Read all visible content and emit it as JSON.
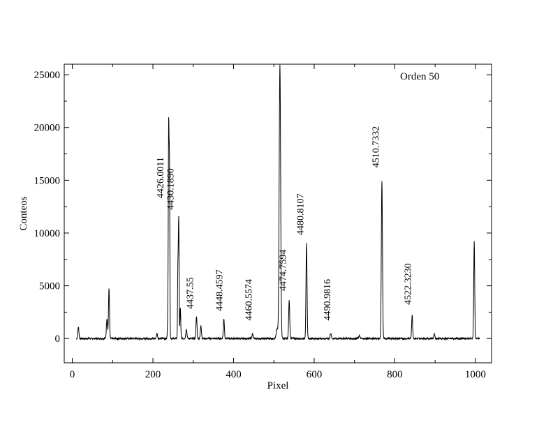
{
  "chart_data": {
    "type": "line",
    "title": "",
    "xlabel": "Pixel",
    "ylabel": "Conteos",
    "xlim": [
      -20,
      1040
    ],
    "ylim": [
      -2300,
      26000
    ],
    "xticks": [
      0,
      200,
      400,
      600,
      800,
      1000
    ],
    "yticks": [
      0,
      5000,
      10000,
      15000,
      20000,
      25000
    ],
    "grid": false,
    "annotation_text": "Orden 50",
    "baseline": 0,
    "series": [
      {
        "color": "#000000",
        "peaks": [
          {
            "x": 15,
            "y": 1100,
            "w": 1.4
          },
          {
            "x": 86,
            "y": 1900,
            "w": 1.4
          },
          {
            "x": 91,
            "y": 4800,
            "w": 1.2
          },
          {
            "x": 210,
            "y": 500,
            "w": 1.4
          },
          {
            "x": 237,
            "y": 2000,
            "w": 1.0
          },
          {
            "x": 239,
            "y": 19300,
            "w": 0.9
          },
          {
            "x": 241,
            "y": 16100,
            "w": 0.9
          },
          {
            "x": 262,
            "y": 6500,
            "w": 0.9
          },
          {
            "x": 264,
            "y": 11000,
            "w": 0.9
          },
          {
            "x": 268,
            "y": 2900,
            "w": 1.0
          },
          {
            "x": 283,
            "y": 900,
            "w": 1.4
          },
          {
            "x": 308,
            "y": 2100,
            "w": 1.3
          },
          {
            "x": 319,
            "y": 1200,
            "w": 1.4
          },
          {
            "x": 376,
            "y": 1900,
            "w": 1.3
          },
          {
            "x": 447,
            "y": 450,
            "w": 1.4
          },
          {
            "x": 508,
            "y": 900,
            "w": 2.0
          },
          {
            "x": 515,
            "y": 26000,
            "w": 1.8
          },
          {
            "x": 538,
            "y": 3600,
            "w": 1.3
          },
          {
            "x": 581,
            "y": 9000,
            "w": 1.3
          },
          {
            "x": 641,
            "y": 500,
            "w": 1.4
          },
          {
            "x": 712,
            "y": 300,
            "w": 1.4
          },
          {
            "x": 768,
            "y": 14900,
            "w": 1.4
          },
          {
            "x": 843,
            "y": 2200,
            "w": 1.3
          },
          {
            "x": 898,
            "y": 450,
            "w": 1.4
          },
          {
            "x": 997,
            "y": 9200,
            "w": 1.2
          }
        ]
      }
    ],
    "annotations": [
      {
        "text": "4426.0011",
        "x": 226,
        "y": 13300
      },
      {
        "text": "4430.1890",
        "x": 251,
        "y": 12200
      },
      {
        "text": "4437.55",
        "x": 300,
        "y": 2800
      },
      {
        "text": "4448.4597",
        "x": 372,
        "y": 2600
      },
      {
        "text": "4460.5574",
        "x": 445,
        "y": 1700
      },
      {
        "text": "4474.7594",
        "x": 530,
        "y": 4500
      },
      {
        "text": "4480.8107",
        "x": 573,
        "y": 9800
      },
      {
        "text": "4490.9816",
        "x": 640,
        "y": 1700
      },
      {
        "text": "4510.7332",
        "x": 760,
        "y": 16200
      },
      {
        "text": "4522.3230",
        "x": 840,
        "y": 3200
      }
    ]
  }
}
